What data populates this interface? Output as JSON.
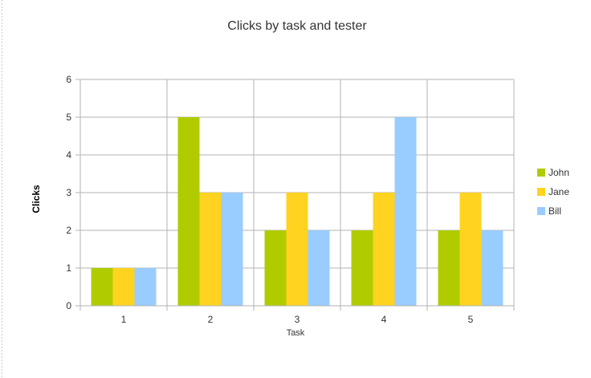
{
  "chart_data": {
    "type": "bar",
    "title": "Clicks by task and tester",
    "xlabel": "Task",
    "ylabel": "Clicks",
    "categories": [
      "1",
      "2",
      "3",
      "4",
      "5"
    ],
    "series": [
      {
        "name": "John",
        "values": [
          1,
          5,
          2,
          2,
          2
        ],
        "color": "#b0cc00"
      },
      {
        "name": "Jane",
        "values": [
          1,
          3,
          3,
          3,
          3
        ],
        "color": "#ffd320"
      },
      {
        "name": "Bill",
        "values": [
          1,
          3,
          2,
          5,
          2
        ],
        "color": "#99ccff"
      }
    ],
    "ylim": [
      0,
      6
    ],
    "yticks": [
      "0",
      "1",
      "2",
      "3",
      "4",
      "5",
      "6"
    ],
    "grid": true,
    "legend": "right",
    "colors": {
      "grid": "#b3b3b3",
      "axis": "#b3b3b3"
    }
  }
}
